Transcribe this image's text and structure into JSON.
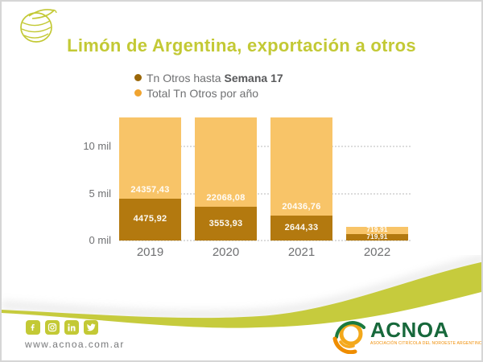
{
  "header": {
    "title": "Limón de Argentina, exportación a otros"
  },
  "legend": [
    {
      "label_prefix": "Tn Otros hasta ",
      "label_bold": "Semana 17",
      "color": "#9a6708"
    },
    {
      "label_prefix": "Total Tn Otros por año",
      "label_bold": "",
      "color": "#f0a430"
    }
  ],
  "chart_data": {
    "type": "bar",
    "subtype": "stacked-clipped",
    "categories": [
      "2019",
      "2020",
      "2021",
      "2022"
    ],
    "series": [
      {
        "name": "Tn Otros hasta Semana 17",
        "color": "#b3790f",
        "values": [
          4475.92,
          3553.93,
          2644.33,
          719.91
        ],
        "labels": [
          "4475,92",
          "3553,93",
          "2644,33",
          "719,91"
        ]
      },
      {
        "name": "Total Tn Otros por año",
        "color": "#f8c468",
        "values": [
          24357.43,
          22068.08,
          20436.76,
          719.91
        ],
        "labels": [
          "24357,43",
          "22068,08",
          "20436,76",
          "719,91"
        ]
      }
    ],
    "yticks": [
      {
        "value": 0,
        "label": "0 mil"
      },
      {
        "value": 5000,
        "label": "5 mil"
      },
      {
        "value": 10000,
        "label": "10 mil"
      }
    ],
    "ylabel": "",
    "xlabel": "",
    "y_visible_max": 13100,
    "grid": "dotted-horizontal",
    "note": "total bars are clipped at the top of the plot area"
  },
  "footer": {
    "social": [
      "facebook",
      "instagram",
      "linkedin",
      "twitter"
    ],
    "url": "www.acnoa.com.ar",
    "brand": {
      "name": "ACNOA",
      "tagline": "ASOCIACIÓN CITRÍCOLA DEL NOROESTE ARGENTINO"
    }
  },
  "colors": {
    "accent": "#c3c935",
    "bar_light": "#f8c468",
    "bar_dark": "#b3790f",
    "dot_total": "#f0a430",
    "dot_hasta": "#9a6708",
    "text_gray": "#6f7072",
    "grid": "#dcdcdc",
    "brand_green": "#17683b",
    "brand_orange": "#f08c00"
  }
}
